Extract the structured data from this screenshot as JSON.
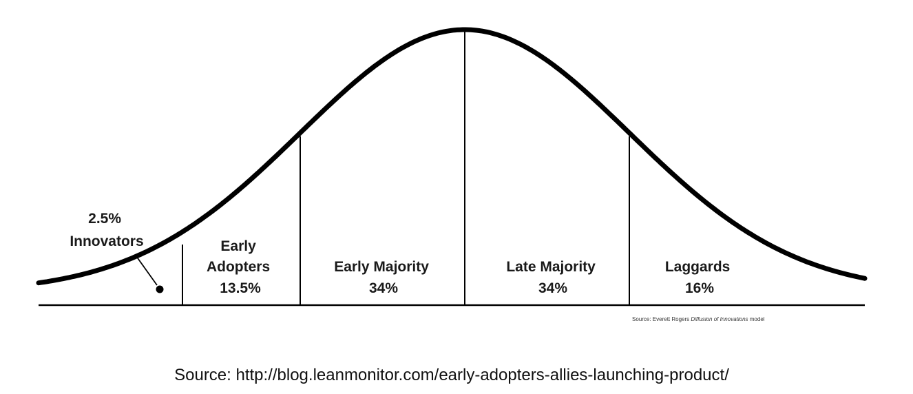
{
  "diagram": {
    "segments": [
      {
        "id": "innovators",
        "line1": "2.5%",
        "line2": "Innovators"
      },
      {
        "id": "early-adopters",
        "line1": "Early",
        "line2": "Adopters",
        "line3": "13.5%"
      },
      {
        "id": "early-majority",
        "line1": "Early Majority",
        "line2": "34%"
      },
      {
        "id": "late-majority",
        "line1": "Late Majority",
        "line2": "34%"
      },
      {
        "id": "laggards",
        "line1": "Laggards",
        "line2": "16%"
      }
    ],
    "credit": {
      "prefix": "Source: Everett Rogers ",
      "italic": "Diffusion of Innovations",
      "suffix": " model"
    },
    "colors": {
      "curve": "#000000",
      "lines": "#000000",
      "background": "#ffffff"
    }
  },
  "source_text": "Source: http://blog.leanmonitor.com/early-adopters-allies-launching-product/"
}
